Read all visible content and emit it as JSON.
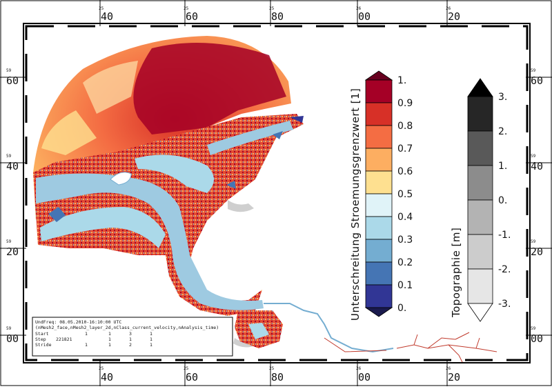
{
  "top_ticks": [
    {
      "small": "25",
      "big": "40"
    },
    {
      "small": "25",
      "big": "60"
    },
    {
      "small": "25",
      "big": "80"
    },
    {
      "small": "26",
      "big": "00"
    },
    {
      "small": "26",
      "big": "20"
    }
  ],
  "bottom_ticks": [
    {
      "small": "25",
      "big": "40"
    },
    {
      "small": "25",
      "big": "60"
    },
    {
      "small": "25",
      "big": "80"
    },
    {
      "small": "26",
      "big": "00"
    },
    {
      "small": "26",
      "big": "20"
    }
  ],
  "left_ticks": [
    {
      "small": "59",
      "big": "60"
    },
    {
      "small": "59",
      "big": "40"
    },
    {
      "small": "59",
      "big": "20"
    },
    {
      "small": "59",
      "big": "00"
    }
  ],
  "right_ticks": [
    {
      "small": "59",
      "big": "60"
    },
    {
      "small": "59",
      "big": "40"
    },
    {
      "small": "59",
      "big": "20"
    },
    {
      "small": "59",
      "big": "00"
    }
  ],
  "legend_velocity": {
    "title": "Unterschreitung Stroemungsgrenzwert [1]",
    "labels": [
      "1.",
      "0.9",
      "0.8",
      "0.7",
      "0.6",
      "0.5",
      "0.4",
      "0.3",
      "0.2",
      "0.1",
      "0."
    ],
    "colors": [
      "#a50026",
      "#d73027",
      "#f46d43",
      "#fdae61",
      "#fee090",
      "#e0f3f8",
      "#abd9e9",
      "#74add1",
      "#4575b4",
      "#313695"
    ],
    "over_color": "#67001f",
    "under_color": "#1a1a4d"
  },
  "legend_topo": {
    "title": "Topographie [m]",
    "labels": [
      "3.",
      "2.",
      "1.",
      "0.",
      "-1.",
      "-2.",
      "-3."
    ],
    "colors": [
      "#262626",
      "#595959",
      "#8c8c8c",
      "#b3b3b3",
      "#cccccc",
      "#e6e6e6"
    ],
    "over_color": "#000000",
    "under_color": "#ffffff"
  },
  "info_box": {
    "line1": "UndFreq: 08.05.2010-16:10:00 UTC",
    "line2": "(nMesh2_face,nMesh2_layer_2d,nClass_current_velocity,nAnalysis_time)",
    "rows": [
      {
        "label": "Start",
        "values": [
          "1",
          "1",
          "3",
          "1"
        ]
      },
      {
        "label": "Step",
        "values": [
          "221821",
          "1",
          "1",
          "1"
        ]
      },
      {
        "label": "Stride",
        "values": [
          "1",
          "1",
          "2",
          "1"
        ]
      }
    ]
  },
  "colors": {
    "land_grey": "#cfcfcf",
    "river_red": "#c0392b"
  }
}
